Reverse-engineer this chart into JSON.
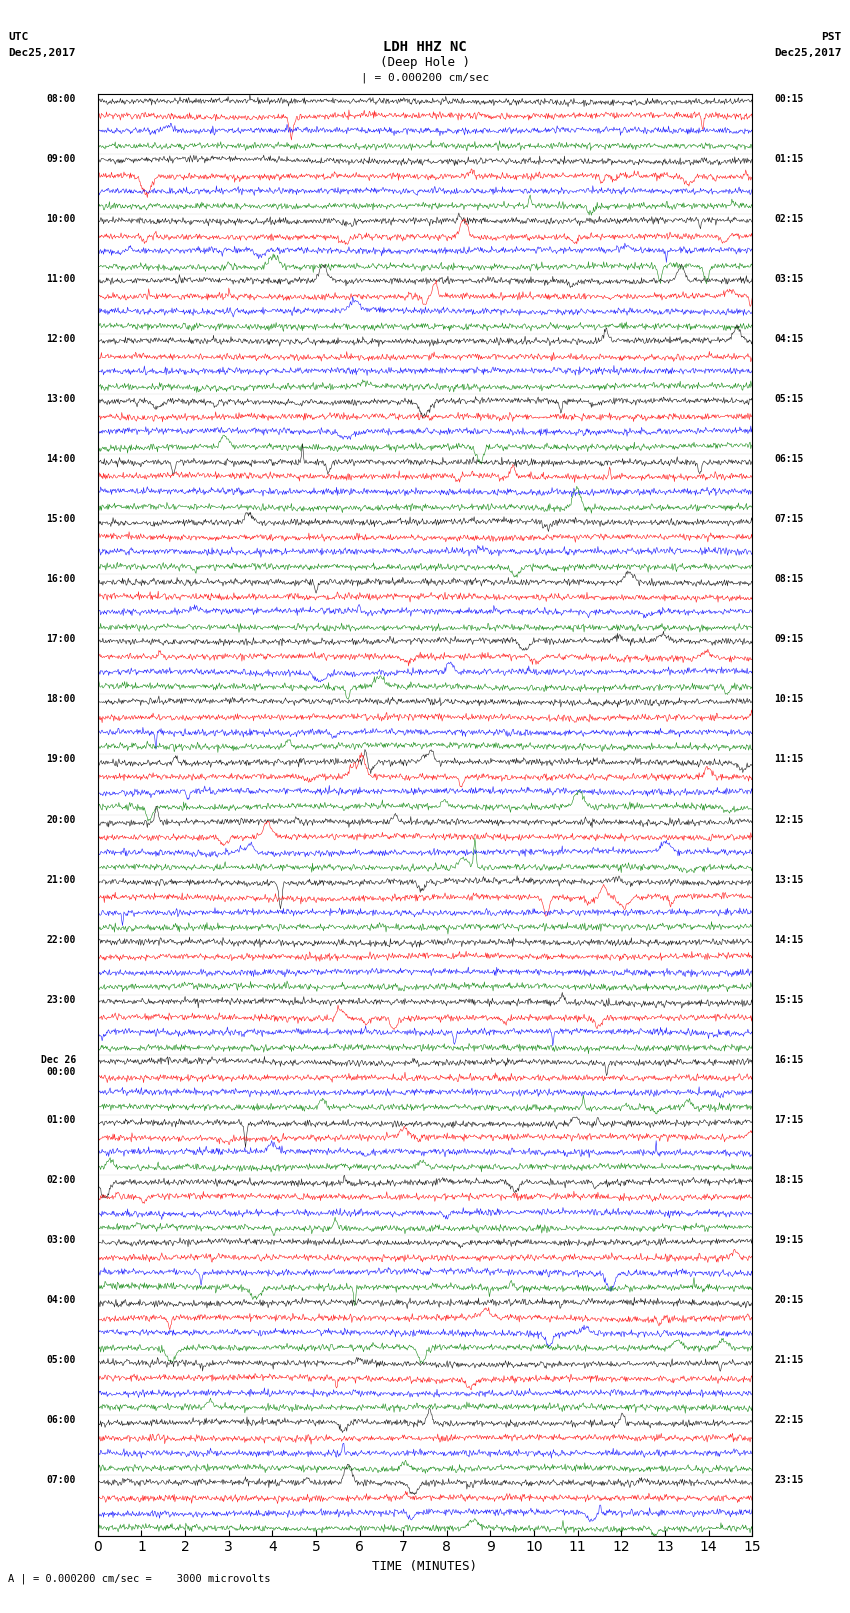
{
  "title_line1": "LDH HHZ NC",
  "title_line2": "(Deep Hole )",
  "scale_label": "= 0.000200 cm/sec",
  "bottom_label": "A | = 0.000200 cm/sec =    3000 microvolts",
  "xlabel": "TIME (MINUTES)",
  "utc_top": "UTC",
  "utc_date": "Dec25,2017",
  "pst_top": "PST",
  "pst_date": "Dec25,2017",
  "left_times": [
    "08:00",
    "09:00",
    "10:00",
    "11:00",
    "12:00",
    "13:00",
    "14:00",
    "15:00",
    "16:00",
    "17:00",
    "18:00",
    "19:00",
    "20:00",
    "21:00",
    "22:00",
    "23:00",
    "Dec 26\n00:00",
    "01:00",
    "02:00",
    "03:00",
    "04:00",
    "05:00",
    "06:00",
    "07:00"
  ],
  "right_times": [
    "00:15",
    "01:15",
    "02:15",
    "03:15",
    "04:15",
    "05:15",
    "06:15",
    "07:15",
    "08:15",
    "09:15",
    "10:15",
    "11:15",
    "12:15",
    "13:15",
    "14:15",
    "15:15",
    "16:15",
    "17:15",
    "18:15",
    "19:15",
    "20:15",
    "21:15",
    "22:15",
    "23:15"
  ],
  "n_rows": 24,
  "traces_per_row": 4,
  "colors": [
    "black",
    "red",
    "blue",
    "green"
  ],
  "fig_width": 8.5,
  "fig_height": 16.13,
  "bg_color": "white",
  "trace_amplitude": 0.35,
  "noise_seed": 42,
  "xlim": [
    0,
    15
  ],
  "xticks": [
    0,
    1,
    2,
    3,
    4,
    5,
    6,
    7,
    8,
    9,
    10,
    11,
    12,
    13,
    14,
    15
  ],
  "minutes_per_row": 15
}
